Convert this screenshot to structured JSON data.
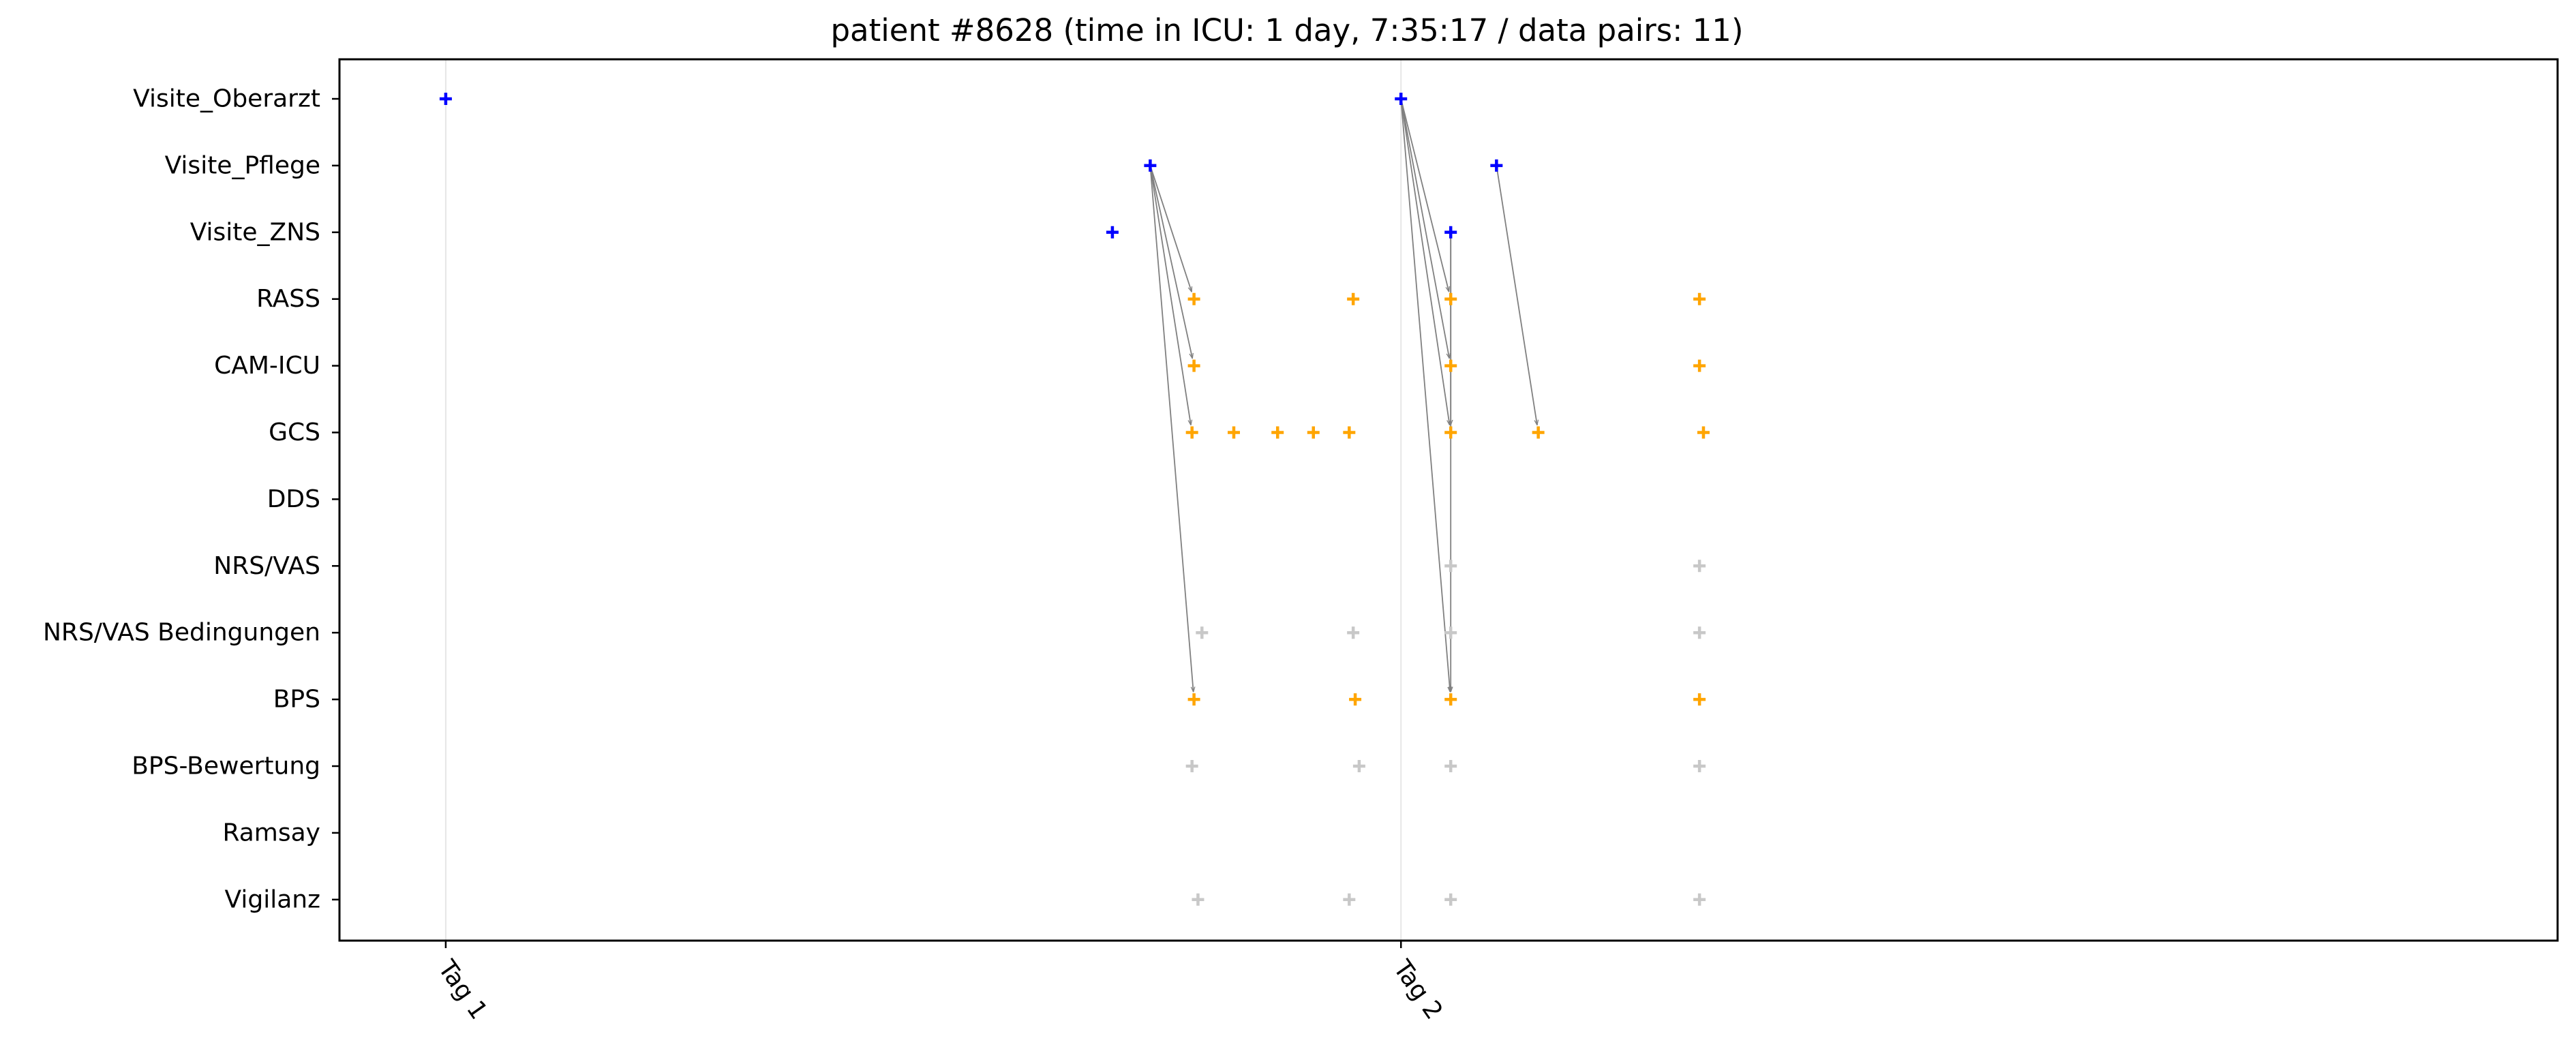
{
  "chart_data": {
    "type": "scatter",
    "title": "patient #8628 (time in ICU: 1 day, 7:35:17 / data pairs: 11)",
    "xlabel": "",
    "ylabel": "",
    "x_unit": "hours since Tag 1",
    "xlim": [
      -2.67,
      53.06
    ],
    "x_ticks": [
      {
        "label": "Tag 1",
        "x": 0
      },
      {
        "label": "Tag 2",
        "x": 24
      }
    ],
    "categories": [
      "Visite_Oberarzt",
      "Visite_Pflege",
      "Visite_ZNS",
      "RASS",
      "CAM-ICU",
      "GCS",
      "DDS",
      "NRS/VAS",
      "NRS/VAS Bedingungen",
      "BPS",
      "BPS-Bewertung",
      "Ramsay",
      "Vigilanz"
    ],
    "grid": false,
    "colors": {
      "visit": "#0000ff",
      "paired": "#ffa500",
      "unpaired": "#c8c8c8",
      "link": "#808080",
      "day_line": "#e6e6e6"
    },
    "series": [
      {
        "color": "#0000ff",
        "points": [
          {
            "x": 0.0,
            "y": "Visite_Oberarzt"
          },
          {
            "x": 24.0,
            "y": "Visite_Oberarzt"
          },
          {
            "x": 17.7,
            "y": "Visite_Pflege"
          },
          {
            "x": 26.4,
            "y": "Visite_Pflege"
          },
          {
            "x": 16.75,
            "y": "Visite_ZNS"
          },
          {
            "x": 25.25,
            "y": "Visite_ZNS"
          }
        ]
      },
      {
        "color": "#ffa500",
        "points": [
          {
            "x": 18.8,
            "y": "RASS"
          },
          {
            "x": 22.8,
            "y": "RASS"
          },
          {
            "x": 25.25,
            "y": "RASS"
          },
          {
            "x": 31.5,
            "y": "RASS"
          },
          {
            "x": 18.8,
            "y": "CAM-ICU"
          },
          {
            "x": 25.25,
            "y": "CAM-ICU"
          },
          {
            "x": 31.5,
            "y": "CAM-ICU"
          },
          {
            "x": 18.75,
            "y": "GCS"
          },
          {
            "x": 19.8,
            "y": "GCS"
          },
          {
            "x": 20.9,
            "y": "GCS"
          },
          {
            "x": 21.8,
            "y": "GCS"
          },
          {
            "x": 22.7,
            "y": "GCS"
          },
          {
            "x": 25.25,
            "y": "GCS"
          },
          {
            "x": 27.45,
            "y": "GCS"
          },
          {
            "x": 31.6,
            "y": "GCS"
          },
          {
            "x": 18.8,
            "y": "BPS"
          },
          {
            "x": 22.85,
            "y": "BPS"
          },
          {
            "x": 25.25,
            "y": "BPS"
          },
          {
            "x": 31.5,
            "y": "BPS"
          }
        ]
      },
      {
        "color": "#c8c8c8",
        "points": [
          {
            "x": 25.25,
            "y": "NRS/VAS"
          },
          {
            "x": 31.5,
            "y": "NRS/VAS"
          },
          {
            "x": 19.0,
            "y": "NRS/VAS Bedingungen"
          },
          {
            "x": 22.8,
            "y": "NRS/VAS Bedingungen"
          },
          {
            "x": 25.25,
            "y": "NRS/VAS Bedingungen"
          },
          {
            "x": 31.5,
            "y": "NRS/VAS Bedingungen"
          },
          {
            "x": 18.75,
            "y": "BPS-Bewertung"
          },
          {
            "x": 22.95,
            "y": "BPS-Bewertung"
          },
          {
            "x": 25.25,
            "y": "BPS-Bewertung"
          },
          {
            "x": 31.5,
            "y": "BPS-Bewertung"
          },
          {
            "x": 18.9,
            "y": "Vigilanz"
          },
          {
            "x": 22.7,
            "y": "Vigilanz"
          },
          {
            "x": 25.25,
            "y": "Vigilanz"
          },
          {
            "x": 31.5,
            "y": "Vigilanz"
          }
        ]
      }
    ],
    "links": [
      {
        "from": {
          "x": 17.7,
          "y": "Visite_Pflege"
        },
        "to": {
          "x": 18.8,
          "y": "RASS"
        }
      },
      {
        "from": {
          "x": 17.7,
          "y": "Visite_Pflege"
        },
        "to": {
          "x": 18.8,
          "y": "CAM-ICU"
        }
      },
      {
        "from": {
          "x": 17.7,
          "y": "Visite_Pflege"
        },
        "to": {
          "x": 18.75,
          "y": "GCS"
        }
      },
      {
        "from": {
          "x": 17.7,
          "y": "Visite_Pflege"
        },
        "to": {
          "x": 18.8,
          "y": "BPS"
        }
      },
      {
        "from": {
          "x": 24.0,
          "y": "Visite_Oberarzt"
        },
        "to": {
          "x": 25.25,
          "y": "RASS"
        }
      },
      {
        "from": {
          "x": 24.0,
          "y": "Visite_Oberarzt"
        },
        "to": {
          "x": 25.25,
          "y": "CAM-ICU"
        }
      },
      {
        "from": {
          "x": 24.0,
          "y": "Visite_Oberarzt"
        },
        "to": {
          "x": 25.25,
          "y": "GCS"
        }
      },
      {
        "from": {
          "x": 24.0,
          "y": "Visite_Oberarzt"
        },
        "to": {
          "x": 25.25,
          "y": "BPS"
        }
      },
      {
        "from": {
          "x": 25.25,
          "y": "Visite_ZNS"
        },
        "to": {
          "x": 25.25,
          "y": "GCS"
        }
      },
      {
        "from": {
          "x": 25.25,
          "y": "Visite_ZNS"
        },
        "to": {
          "x": 25.25,
          "y": "BPS"
        }
      },
      {
        "from": {
          "x": 26.4,
          "y": "Visite_Pflege"
        },
        "to": {
          "x": 27.45,
          "y": "GCS"
        }
      }
    ]
  }
}
